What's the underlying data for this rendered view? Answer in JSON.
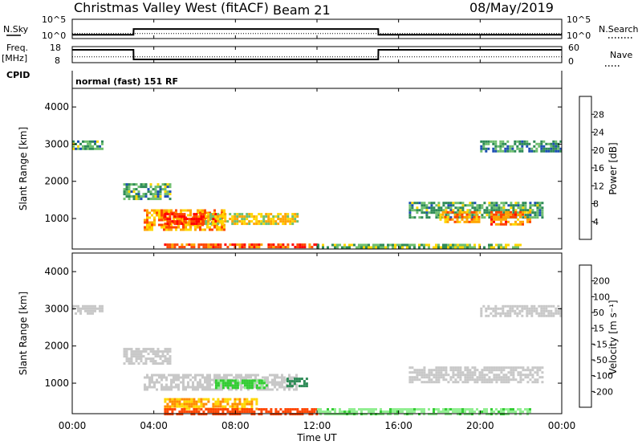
{
  "header": {
    "station": "Christmas Valley West (fitACF)",
    "beam": "Beam 21",
    "date": "08/May/2019"
  },
  "top_panels": {
    "nsky_label": "N.Sky",
    "nsearch_label": "N.Search",
    "freq_label_1": "Freq.",
    "freq_label_2": "[MHz]",
    "nave_label": "Nave",
    "cpid_label": "CPID",
    "cpid_value": "normal (fast) 151 RF",
    "noise_left_ticks": [
      "10^5",
      "10^0"
    ],
    "noise_right_ticks": [
      "10^5",
      "10^0"
    ],
    "freq_ticks": [
      "18",
      "8"
    ],
    "nave_ticks": [
      "60",
      "0"
    ]
  },
  "axes": {
    "ylabel": "Slant Range [km]",
    "xlabel": "Time UT",
    "x_ticks": [
      "00:00",
      "04:00",
      "08:00",
      "12:00",
      "16:00",
      "20:00",
      "00:00"
    ],
    "y_ticks": [
      "1000",
      "2000",
      "3000",
      "4000"
    ]
  },
  "colorbars": {
    "power": {
      "label": "Power [dB]",
      "ticks": [
        "4",
        "8",
        "12",
        "16",
        "20",
        "24",
        "28"
      ],
      "colors": [
        "#0000ff",
        "#1e50b4",
        "#2e8b57",
        "#6fbf6f",
        "#ffd700",
        "#ffa500",
        "#ff4500",
        "#ff0000"
      ]
    },
    "velocity": {
      "label": "Velocity [m s⁻¹]",
      "ticks": [
        "200",
        "100",
        "50",
        "15",
        "-15",
        "-50",
        "-100",
        "-200"
      ],
      "colors": [
        "#1e3cc8",
        "#2e8b57",
        "#32cd32",
        "#90ee90",
        "#c8c8c8",
        "#ffd700",
        "#ff8c00",
        "#ff4500",
        "#ff0000"
      ]
    }
  },
  "chart_data": [
    {
      "type": "line",
      "title": "Christmas Valley West (fitACF)",
      "name": "noise panel",
      "series": [
        {
          "name": "N.Sky",
          "x": [
            0,
            3,
            3.01,
            15,
            15.01,
            24
          ],
          "y": [
            10,
            10,
            300,
            300,
            10,
            10
          ]
        },
        {
          "name": "N.Search",
          "x": [
            0,
            24
          ],
          "y": [
            20,
            20
          ]
        }
      ],
      "xlim": [
        0,
        24
      ],
      "ylim": [
        1,
        100000
      ],
      "log_y": true
    },
    {
      "type": "line",
      "name": "frequency / nave panel",
      "series": [
        {
          "name": "Freq. [MHz]",
          "x": [
            0,
            3,
            3.01,
            15,
            15.01,
            24
          ],
          "y": [
            16,
            16,
            10,
            10,
            16,
            16
          ]
        },
        {
          "name": "Nave",
          "x": [
            0,
            24
          ],
          "y": [
            22,
            22
          ]
        }
      ],
      "xlim": [
        0,
        24
      ],
      "ylim": [
        8,
        18
      ],
      "y2lim": [
        0,
        60
      ]
    },
    {
      "type": "heatmap",
      "name": "Power",
      "xlabel": "Time UT",
      "ylabel": "Slant Range [km]",
      "colorbar_label": "Power [dB]",
      "xlim": [
        0,
        24
      ],
      "ylim": [
        180,
        4500
      ],
      "clim": [
        0,
        30
      ],
      "regions": [
        {
          "t": [
            0.0,
            1.5
          ],
          "r": [
            2850,
            3100
          ],
          "power": 12
        },
        {
          "t": [
            2.5,
            4.8
          ],
          "r": [
            1550,
            1950
          ],
          "power": 12
        },
        {
          "t": [
            3.5,
            7.5
          ],
          "r": [
            700,
            1250
          ],
          "power": 22
        },
        {
          "t": [
            4.5,
            7.0
          ],
          "r": [
            850,
            1150
          ],
          "power": 28
        },
        {
          "t": [
            6.5,
            11.0
          ],
          "r": [
            850,
            1150
          ],
          "power": 18
        },
        {
          "t": [
            4.5,
            12.0
          ],
          "r": [
            220,
            330
          ],
          "power": 26
        },
        {
          "t": [
            12.0,
            22.0
          ],
          "r": [
            220,
            320
          ],
          "power": 14
        },
        {
          "t": [
            16.5,
            23.0
          ],
          "r": [
            1000,
            1450
          ],
          "power": 12
        },
        {
          "t": [
            18.0,
            20.0
          ],
          "r": [
            900,
            1200
          ],
          "power": 22
        },
        {
          "t": [
            20.5,
            22.5
          ],
          "r": [
            850,
            1200
          ],
          "power": 24
        },
        {
          "t": [
            20.0,
            24.0
          ],
          "r": [
            2800,
            3100
          ],
          "power": 10
        }
      ]
    },
    {
      "type": "heatmap",
      "name": "Velocity",
      "xlabel": "Time UT",
      "ylabel": "Slant Range [km]",
      "colorbar_label": "Velocity [m s⁻¹]",
      "xlim": [
        0,
        24
      ],
      "ylim": [
        180,
        4500
      ],
      "clim": [
        -200,
        200
      ],
      "regions": [
        {
          "t": [
            0.0,
            1.5
          ],
          "r": [
            2850,
            3100
          ],
          "velocity": 0
        },
        {
          "t": [
            2.5,
            4.8
          ],
          "r": [
            1550,
            1950
          ],
          "velocity": 0
        },
        {
          "t": [
            3.5,
            11.0
          ],
          "r": [
            850,
            1250
          ],
          "velocity": 0
        },
        {
          "t": [
            7.0,
            9.5
          ],
          "r": [
            900,
            1100
          ],
          "velocity": 60
        },
        {
          "t": [
            10.5,
            11.5
          ],
          "r": [
            950,
            1150
          ],
          "velocity": 150
        },
        {
          "t": [
            4.5,
            9.0
          ],
          "r": [
            300,
            600
          ],
          "velocity": -50
        },
        {
          "t": [
            4.5,
            12.0
          ],
          "r": [
            200,
            330
          ],
          "velocity": -120
        },
        {
          "t": [
            12.0,
            22.5
          ],
          "r": [
            200,
            330
          ],
          "velocity": 40
        },
        {
          "t": [
            16.5,
            23.0
          ],
          "r": [
            1000,
            1450
          ],
          "velocity": 0
        },
        {
          "t": [
            20.0,
            24.0
          ],
          "r": [
            2800,
            3100
          ],
          "velocity": 0
        }
      ]
    }
  ]
}
